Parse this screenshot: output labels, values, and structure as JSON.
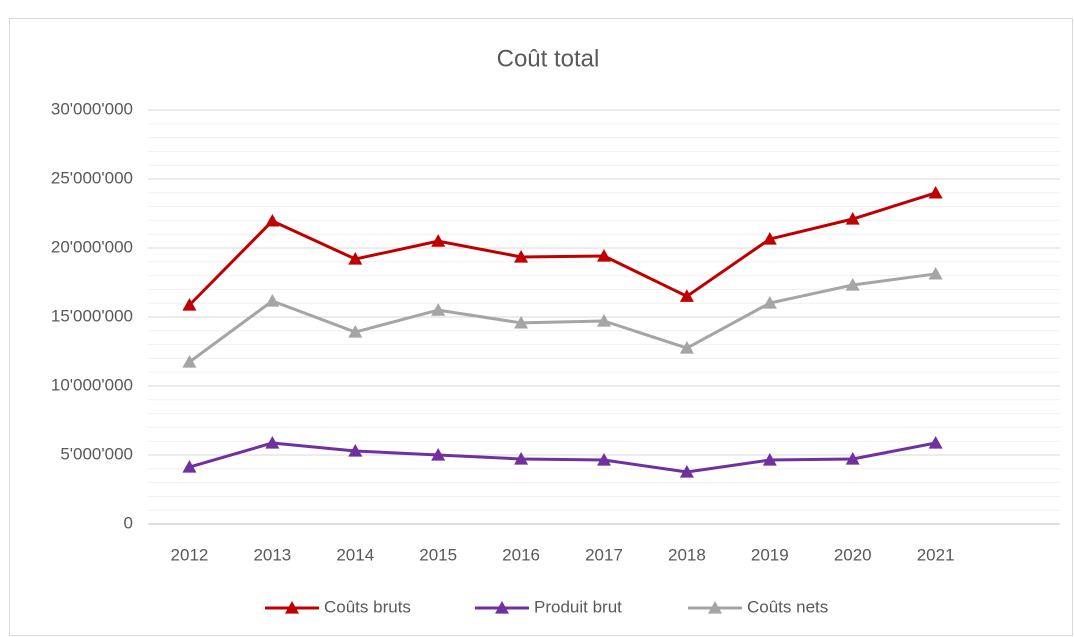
{
  "chart_data": {
    "type": "line",
    "title": "Coût total",
    "categories": [
      "2012",
      "2013",
      "2014",
      "2015",
      "2016",
      "2017",
      "2018",
      "2019",
      "2020",
      "2021",
      null
    ],
    "series": [
      {
        "name": "Coûts bruts",
        "color": "#c00000",
        "values": [
          15870000,
          21960000,
          19200000,
          20500000,
          19350000,
          19420000,
          16500000,
          20650000,
          22100000,
          23990000,
          null
        ]
      },
      {
        "name": "Produit brut",
        "color": "#7030a0",
        "values": [
          4130000,
          5870000,
          5290000,
          5000000,
          4710000,
          4640000,
          3770000,
          4640000,
          4710000,
          5870000,
          null
        ]
      },
      {
        "name": "Coûts nets",
        "color": "#a5a5a5",
        "values": [
          11740000,
          16160000,
          13910000,
          15500000,
          14570000,
          14710000,
          12750000,
          16010000,
          17320000,
          18120000,
          null
        ]
      }
    ],
    "ylim": [
      0,
      30000000
    ],
    "yticks": [
      0,
      {
        "value": 5000000,
        "label": "5'000'000"
      },
      {
        "value": 10000000,
        "label": "10'000'000"
      },
      {
        "value": 15000000,
        "label": "15'000'000"
      },
      {
        "value": 20000000,
        "label": "20'000'000"
      },
      {
        "value": 25000000,
        "label": "25'000'000"
      },
      {
        "value": 30000000,
        "label": "30'000'000"
      }
    ],
    "grid": true,
    "minor_grid_step": 1000000,
    "legend": "bottom",
    "marker": "triangle"
  }
}
